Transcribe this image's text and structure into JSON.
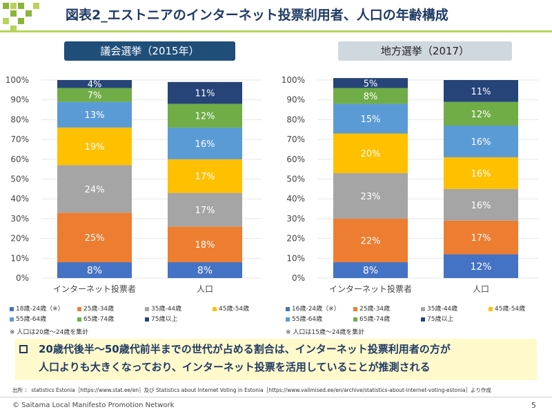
{
  "header": {
    "title": "図表2_エストニアのインターネット投票利用者、人口の年齢構成"
  },
  "colors": {
    "age18_24": "#4472c4",
    "age25_34": "#ed7d31",
    "age35_44": "#a5a5a5",
    "age45_54": "#ffc000",
    "age55_64": "#5b9bd5",
    "age65_74": "#70ad47",
    "age75": "#264478",
    "title_left_bg": "#1f4e79",
    "title_right_bg": "#d0d8df",
    "header_accent": "#b7d35a",
    "bullet_bg": "#fff9cc"
  },
  "chart_data": [
    {
      "type": "bar",
      "stacked": true,
      "title": "議会選挙（2015年）",
      "categories": [
        "インターネット投票者",
        "人口"
      ],
      "ylim": [
        0,
        100
      ],
      "yticks": [
        "0%",
        "10%",
        "20%",
        "30%",
        "40%",
        "50%",
        "60%",
        "70%",
        "80%",
        "90%",
        "100%"
      ],
      "series": [
        {
          "name": "18歳-24歳（※）",
          "color": "#4472c4",
          "values": [
            8,
            8
          ],
          "labels": [
            "8%",
            "8%"
          ]
        },
        {
          "name": "25歳-34歳",
          "color": "#ed7d31",
          "values": [
            25,
            18
          ],
          "labels": [
            "25%",
            "18%"
          ]
        },
        {
          "name": "35歳-44歳",
          "color": "#a5a5a5",
          "values": [
            24,
            17
          ],
          "labels": [
            "24%",
            "17%"
          ]
        },
        {
          "name": "45歳-54歳",
          "color": "#ffc000",
          "values": [
            19,
            17
          ],
          "labels": [
            "19%",
            "17%"
          ]
        },
        {
          "name": "55歳-64歳",
          "color": "#5b9bd5",
          "values": [
            13,
            16
          ],
          "labels": [
            "13%",
            "16%"
          ]
        },
        {
          "name": "65歳-74歳",
          "color": "#70ad47",
          "values": [
            7,
            12
          ],
          "labels": [
            "7%",
            "12%"
          ]
        },
        {
          "name": "75歳以上",
          "color": "#264478",
          "values": [
            4,
            11
          ],
          "labels": [
            "4%",
            "11%"
          ]
        }
      ],
      "legend": "bottom",
      "note": "※ 人口は20歳～24歳を集計"
    },
    {
      "type": "bar",
      "stacked": true,
      "title": "地方選挙（2017）",
      "categories": [
        "インターネット投票者",
        "人口"
      ],
      "ylim": [
        0,
        100
      ],
      "yticks": [
        "0%",
        "10%",
        "20%",
        "30%",
        "40%",
        "50%",
        "60%",
        "70%",
        "80%",
        "90%",
        "100%"
      ],
      "series": [
        {
          "name": "16歳-24歳（※）",
          "color": "#4472c4",
          "values": [
            8,
            12
          ],
          "labels": [
            "8%",
            "12%"
          ]
        },
        {
          "name": "25歳-34歳",
          "color": "#ed7d31",
          "values": [
            22,
            17
          ],
          "labels": [
            "22%",
            "17%"
          ]
        },
        {
          "name": "35歳-44歳",
          "color": "#a5a5a5",
          "values": [
            23,
            16
          ],
          "labels": [
            "23%",
            "16%"
          ]
        },
        {
          "name": "45歳-54歳",
          "color": "#ffc000",
          "values": [
            20,
            16
          ],
          "labels": [
            "20%",
            "16%"
          ]
        },
        {
          "name": "55歳-64歳",
          "color": "#5b9bd5",
          "values": [
            15,
            16
          ],
          "labels": [
            "15%",
            "16%"
          ]
        },
        {
          "name": "65歳-74歳",
          "color": "#70ad47",
          "values": [
            8,
            12
          ],
          "labels": [
            "8%",
            "12%"
          ]
        },
        {
          "name": "75歳以上",
          "color": "#264478",
          "values": [
            5,
            11
          ],
          "labels": [
            "5%",
            "11%"
          ]
        }
      ],
      "legend": "bottom",
      "note": "※ 人口は15歳～24歳を集計"
    }
  ],
  "bullet": {
    "mark": "ロ",
    "line1": "20歳代後半～50歳代前半までの世代が占める割合は、インターネット投票利用者の方が",
    "line2": "人口よりも大きくなっており、インターネット投票を活用していることが推測される"
  },
  "source": "出所 ： statistics Estonia［https://www.stat.ee/en］及び Statistics about Internet Voting in Estonia［https://www.valimised.ee/en/archive/statistics-about-internet-voting-estonia］より作成",
  "footer": {
    "copyright": "© Saitama Local Manifesto Promotion Network",
    "page": "5"
  }
}
